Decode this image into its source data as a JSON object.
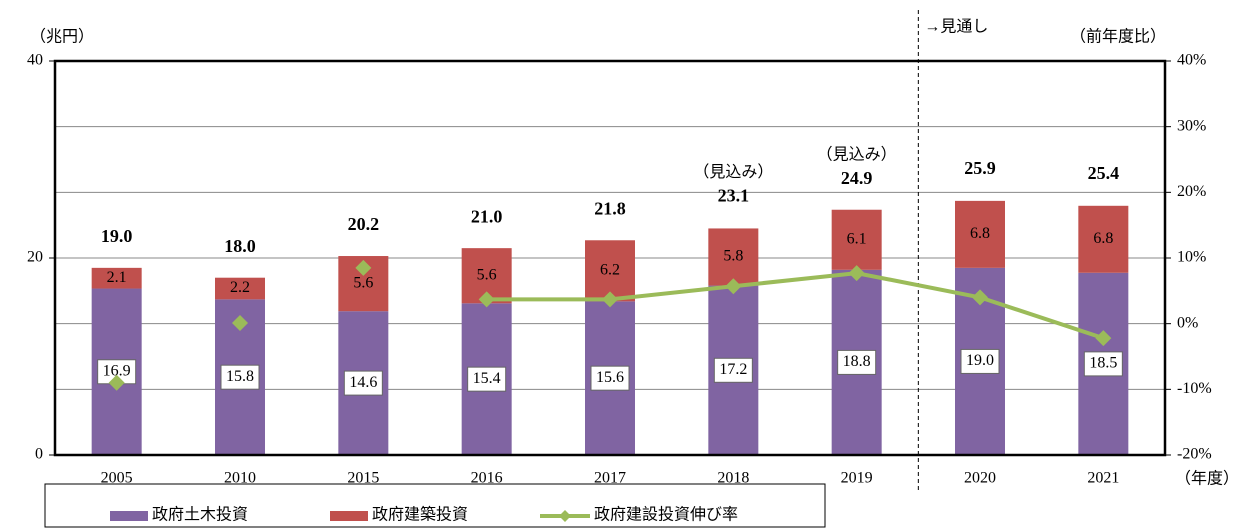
{
  "chart_data": {
    "type": "bar",
    "stacked": true,
    "y_label": "（兆円）",
    "y2_label": "（前年度比）",
    "x_label": "（年度）",
    "categories": [
      "2005",
      "2010",
      "2015",
      "2016",
      "2017",
      "2018",
      "2019",
      "2020",
      "2021"
    ],
    "series": [
      {
        "name": "政府土木投資",
        "color": "#8064a2",
        "values": [
          16.9,
          15.8,
          14.6,
          15.4,
          15.6,
          17.2,
          18.8,
          19.0,
          18.5
        ],
        "value_labels": [
          "16.9",
          "15.8",
          "14.6",
          "15.4",
          "15.6",
          "17.2",
          "18.8",
          "19.0",
          "18.5"
        ]
      },
      {
        "name": "政府建築投資",
        "color": "#c0504d",
        "values": [
          2.1,
          2.2,
          5.6,
          5.6,
          6.2,
          5.8,
          6.1,
          6.8,
          6.8
        ],
        "value_labels": [
          "2.1",
          "2.2",
          "5.6",
          "5.6",
          "6.2",
          "5.8",
          "6.1",
          "6.8",
          "6.8"
        ]
      },
      {
        "name": "政府建設投資伸び率",
        "color": "#9bbb59",
        "type": "line",
        "axis": "y2",
        "line_start": "2016",
        "values": [
          -9.0,
          0.1,
          8.5,
          3.7,
          3.7,
          5.7,
          7.7,
          4.0,
          -2.2
        ]
      }
    ],
    "totals": [
      19.0,
      18.0,
      20.2,
      21.0,
      21.8,
      23.1,
      24.9,
      25.9,
      25.4
    ],
    "total_labels": [
      "19.0",
      "18.0",
      "20.2",
      "21.0",
      "21.8",
      "23.1",
      "24.9",
      "25.9",
      "25.4"
    ],
    "annotations": [
      {
        "text": "（見込み）",
        "category": "2018"
      },
      {
        "text": "（見込み）",
        "category": "2019"
      },
      {
        "text": "→見通し",
        "category": "2020"
      }
    ],
    "ylim": [
      0,
      40
    ],
    "yticks": [
      0,
      20,
      40
    ],
    "y2lim": [
      -20,
      40
    ],
    "y2ticks": [
      {
        "value": -20,
        "label": "-20%"
      },
      {
        "value": -10,
        "label": "-10%"
      },
      {
        "value": 0,
        "label": "0%"
      },
      {
        "value": 10,
        "label": "10%"
      },
      {
        "value": 20,
        "label": "20%"
      },
      {
        "value": 30,
        "label": "30%"
      },
      {
        "value": 40,
        "label": "40%"
      }
    ],
    "grid": true
  }
}
